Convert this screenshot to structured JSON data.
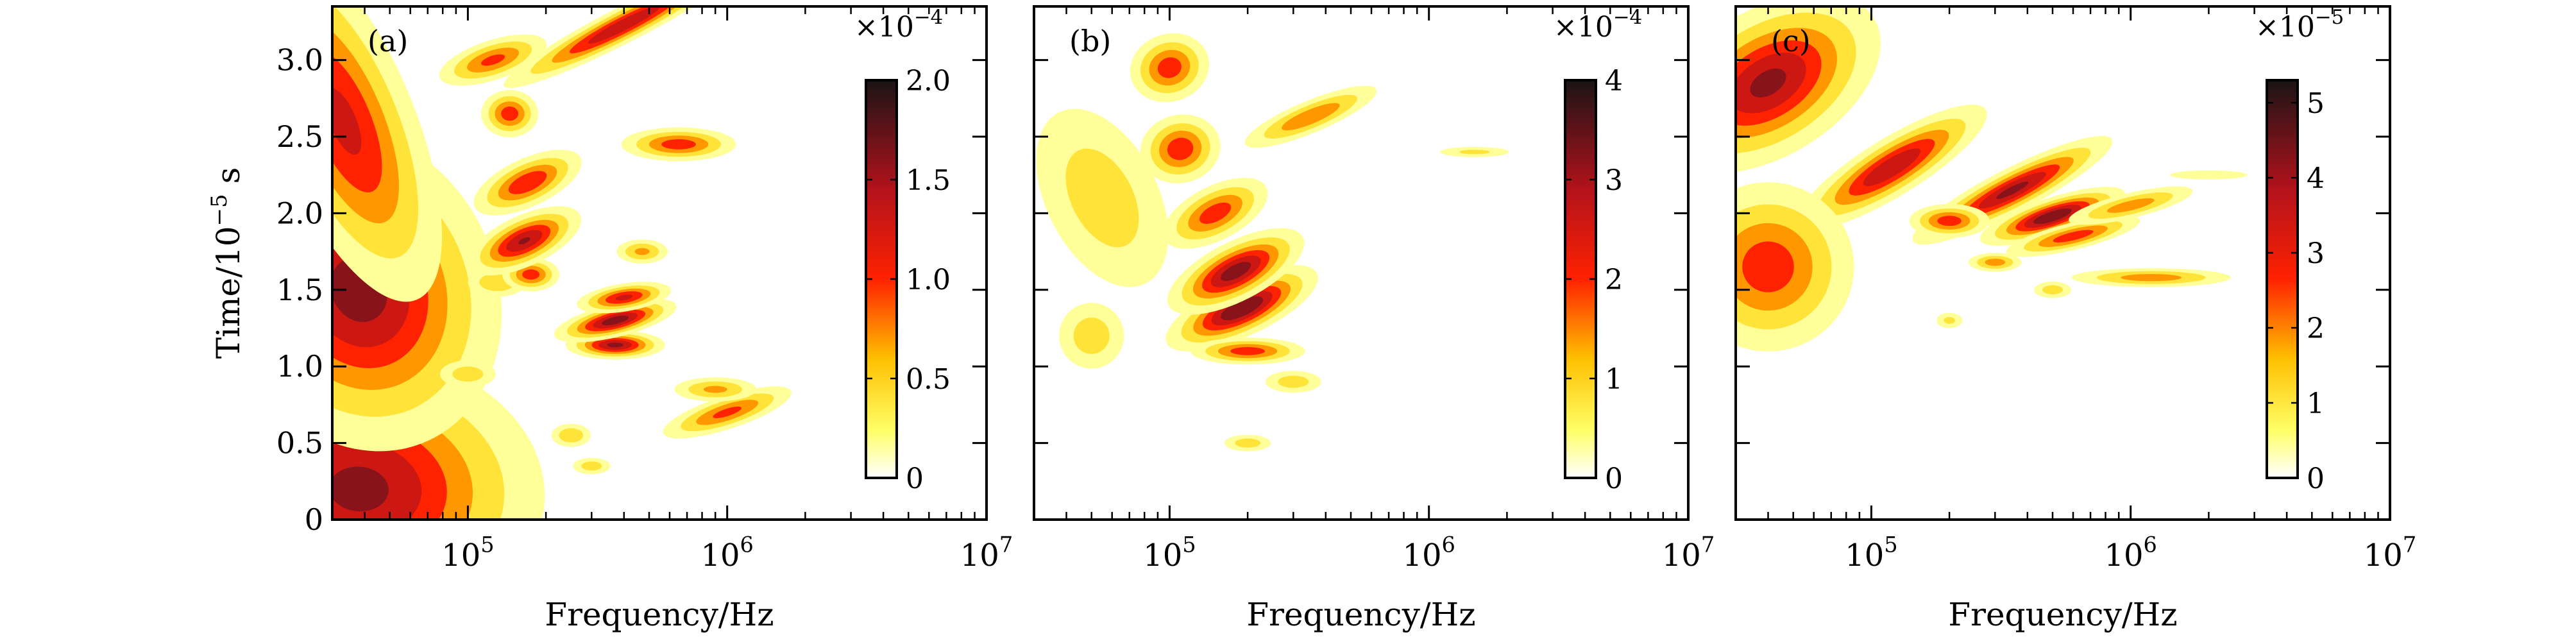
{
  "chart_data": [
    {
      "type": "heatmap",
      "panel_label": "(a)",
      "xlabel": "Frequency/Hz",
      "ylabel": "Time/10",
      "ylabel_exponent": "−5",
      "ylabel_unit": " s",
      "xscale": "log",
      "xlim": [
        30000,
        10000000
      ],
      "ylim": [
        0,
        3.35
      ],
      "x_ticks": [
        {
          "value": 100000,
          "base": "10",
          "exp": "5"
        },
        {
          "value": 1000000,
          "base": "10",
          "exp": "6"
        },
        {
          "value": 10000000,
          "base": "10",
          "exp": "7"
        }
      ],
      "y_ticks": [
        0,
        0.5,
        1.0,
        1.5,
        2.0,
        2.5,
        3.0
      ],
      "y_tick_labels": [
        "0",
        "0.5",
        "1.0",
        "1.5",
        "2.0",
        "2.5",
        "3.0"
      ],
      "colorbar": {
        "multiplier_base": "×10",
        "multiplier_exp": "−4",
        "min": 0,
        "max": 2.0,
        "ticks": [
          0,
          0.5,
          1.0,
          1.5,
          2.0
        ],
        "tick_labels": [
          "0",
          "0.5",
          "1.0",
          "1.5",
          "2.0"
        ]
      },
      "blobs": [
        {
          "f": 38000,
          "t": 0.2,
          "sf": 0.3,
          "st": 0.38,
          "a": 0.85,
          "rho": 0.1
        },
        {
          "f": 38000,
          "t": 1.5,
          "sf": 0.22,
          "st": 0.45,
          "a": 0.88,
          "rho": -0.55
        },
        {
          "f": 33000,
          "t": 2.6,
          "sf": 0.12,
          "st": 0.55,
          "a": 0.7,
          "rho": -0.5
        },
        {
          "f": 100000,
          "t": 0.95,
          "sf": 0.06,
          "st": 0.05,
          "a": 0.3,
          "rho": 0
        },
        {
          "f": 130000,
          "t": 1.55,
          "sf": 0.06,
          "st": 0.05,
          "a": 0.35,
          "rho": 0
        },
        {
          "f": 175000,
          "t": 1.6,
          "sf": 0.05,
          "st": 0.05,
          "a": 0.6,
          "rho": 0
        },
        {
          "f": 165000,
          "t": 1.82,
          "sf": 0.1,
          "st": 0.07,
          "a": 0.82,
          "rho": -0.55
        },
        {
          "f": 170000,
          "t": 2.2,
          "sf": 0.1,
          "st": 0.07,
          "a": 0.65,
          "rho": -0.55
        },
        {
          "f": 145000,
          "t": 2.65,
          "sf": 0.05,
          "st": 0.07,
          "a": 0.6,
          "rho": 0
        },
        {
          "f": 125000,
          "t": 3.0,
          "sf": 0.1,
          "st": 0.06,
          "a": 0.55,
          "rho": -0.4
        },
        {
          "f": 400000,
          "t": 3.23,
          "sf": 0.22,
          "st": 0.05,
          "a": 0.8,
          "rho": -0.6
        },
        {
          "f": 370000,
          "t": 1.14,
          "sf": 0.08,
          "st": 0.04,
          "a": 0.85,
          "rho": 0
        },
        {
          "f": 370000,
          "t": 1.3,
          "sf": 0.1,
          "st": 0.045,
          "a": 0.9,
          "rho": -0.3
        },
        {
          "f": 400000,
          "t": 1.45,
          "sf": 0.08,
          "st": 0.04,
          "a": 0.7,
          "rho": -0.2
        },
        {
          "f": 470000,
          "t": 1.75,
          "sf": 0.05,
          "st": 0.04,
          "a": 0.4,
          "rho": 0
        },
        {
          "f": 650000,
          "t": 2.45,
          "sf": 0.1,
          "st": 0.05,
          "a": 0.6,
          "rho": 0
        },
        {
          "f": 1000000,
          "t": 0.7,
          "sf": 0.12,
          "st": 0.05,
          "a": 0.55,
          "rho": -0.4
        },
        {
          "f": 900000,
          "t": 0.85,
          "sf": 0.08,
          "st": 0.04,
          "a": 0.4,
          "rho": 0
        },
        {
          "f": 250000,
          "t": 0.55,
          "sf": 0.04,
          "st": 0.04,
          "a": 0.35,
          "rho": 0
        },
        {
          "f": 300000,
          "t": 0.35,
          "sf": 0.04,
          "st": 0.03,
          "a": 0.3,
          "rho": 0
        }
      ]
    },
    {
      "type": "heatmap",
      "panel_label": "(b)",
      "xlabel": "Frequency/Hz",
      "xscale": "log",
      "xlim": [
        30000,
        10000000
      ],
      "ylim": [
        0,
        3.35
      ],
      "x_ticks": [
        {
          "value": 100000,
          "base": "10",
          "exp": "5"
        },
        {
          "value": 1000000,
          "base": "10",
          "exp": "6"
        },
        {
          "value": 10000000,
          "base": "10",
          "exp": "7"
        }
      ],
      "y_ticks": [
        0,
        0.5,
        1.0,
        1.5,
        2.0,
        2.5,
        3.0
      ],
      "colorbar": {
        "multiplier_base": "×10",
        "multiplier_exp": "−4",
        "min": 0,
        "max": 4,
        "ticks": [
          0,
          1,
          2,
          3,
          4
        ],
        "tick_labels": [
          "0",
          "1",
          "2",
          "3",
          "4"
        ]
      },
      "blobs": [
        {
          "f": 190000,
          "t": 1.38,
          "sf": 0.13,
          "st": 0.075,
          "a": 0.97,
          "rho": -0.55
        },
        {
          "f": 180000,
          "t": 1.62,
          "sf": 0.12,
          "st": 0.08,
          "a": 0.9,
          "rho": -0.6
        },
        {
          "f": 150000,
          "t": 2.0,
          "sf": 0.1,
          "st": 0.08,
          "a": 0.6,
          "rho": -0.6
        },
        {
          "f": 110000,
          "t": 2.42,
          "sf": 0.07,
          "st": 0.1,
          "a": 0.62,
          "rho": -0.3
        },
        {
          "f": 100000,
          "t": 2.95,
          "sf": 0.07,
          "st": 0.1,
          "a": 0.6,
          "rho": -0.4
        },
        {
          "f": 200000,
          "t": 1.1,
          "sf": 0.1,
          "st": 0.04,
          "a": 0.6,
          "rho": 0
        },
        {
          "f": 350000,
          "t": 2.63,
          "sf": 0.13,
          "st": 0.05,
          "a": 0.5,
          "rho": -0.5
        },
        {
          "f": 50000,
          "t": 1.2,
          "sf": 0.07,
          "st": 0.12,
          "a": 0.3,
          "rho": 0
        },
        {
          "f": 55000,
          "t": 2.1,
          "sf": 0.12,
          "st": 0.35,
          "a": 0.3,
          "rho": -0.6
        },
        {
          "f": 300000,
          "t": 0.9,
          "sf": 0.06,
          "st": 0.04,
          "a": 0.3,
          "rho": 0
        },
        {
          "f": 200000,
          "t": 0.5,
          "sf": 0.05,
          "st": 0.03,
          "a": 0.3,
          "rho": 0
        },
        {
          "f": 1500000,
          "t": 2.4,
          "sf": 0.08,
          "st": 0.02,
          "a": 0.25,
          "rho": 0
        }
      ]
    },
    {
      "type": "heatmap",
      "panel_label": "(c)",
      "xlabel": "Frequency/Hz",
      "xscale": "log",
      "xlim": [
        30000,
        10000000
      ],
      "ylim": [
        0,
        3.35
      ],
      "x_ticks": [
        {
          "value": 100000,
          "base": "10",
          "exp": "5"
        },
        {
          "value": 1000000,
          "base": "10",
          "exp": "6"
        },
        {
          "value": 10000000,
          "base": "10",
          "exp": "7"
        }
      ],
      "y_ticks": [
        0,
        0.5,
        1.0,
        1.5,
        2.0,
        2.5,
        3.0
      ],
      "colorbar": {
        "multiplier_base": "×10",
        "multiplier_exp": "−5",
        "min": 0,
        "max": 5.3,
        "ticks": [
          0,
          1,
          2,
          3,
          4,
          5
        ],
        "tick_labels": [
          "0",
          "1",
          "2",
          "3",
          "4",
          "5"
        ]
      },
      "blobs": [
        {
          "f": 40000,
          "t": 2.85,
          "sf": 0.2,
          "st": 0.2,
          "a": 0.85,
          "rho": -0.7
        },
        {
          "f": 120000,
          "t": 2.3,
          "sf": 0.18,
          "st": 0.08,
          "a": 0.8,
          "rho": -0.7
        },
        {
          "f": 350000,
          "t": 2.15,
          "sf": 0.18,
          "st": 0.06,
          "a": 0.85,
          "rho": -0.6
        },
        {
          "f": 500000,
          "t": 1.98,
          "sf": 0.12,
          "st": 0.05,
          "a": 0.95,
          "rho": -0.4
        },
        {
          "f": 600000,
          "t": 1.85,
          "sf": 0.12,
          "st": 0.04,
          "a": 0.6,
          "rho": -0.3
        },
        {
          "f": 40000,
          "t": 1.65,
          "sf": 0.15,
          "st": 0.25,
          "a": 0.6,
          "rho": 0
        },
        {
          "f": 200000,
          "t": 1.95,
          "sf": 0.07,
          "st": 0.05,
          "a": 0.6,
          "rho": 0
        },
        {
          "f": 1200000,
          "t": 1.58,
          "sf": 0.15,
          "st": 0.03,
          "a": 0.45,
          "rho": 0
        },
        {
          "f": 300000,
          "t": 1.68,
          "sf": 0.05,
          "st": 0.03,
          "a": 0.45,
          "rho": 0
        },
        {
          "f": 1000000,
          "t": 2.05,
          "sf": 0.12,
          "st": 0.04,
          "a": 0.45,
          "rho": -0.3
        },
        {
          "f": 2000000,
          "t": 2.25,
          "sf": 0.1,
          "st": 0.02,
          "a": 0.2,
          "rho": 0
        },
        {
          "f": 500000,
          "t": 1.5,
          "sf": 0.04,
          "st": 0.03,
          "a": 0.3,
          "rho": 0
        },
        {
          "f": 200000,
          "t": 1.3,
          "sf": 0.03,
          "st": 0.03,
          "a": 0.25,
          "rho": 0
        }
      ]
    }
  ]
}
